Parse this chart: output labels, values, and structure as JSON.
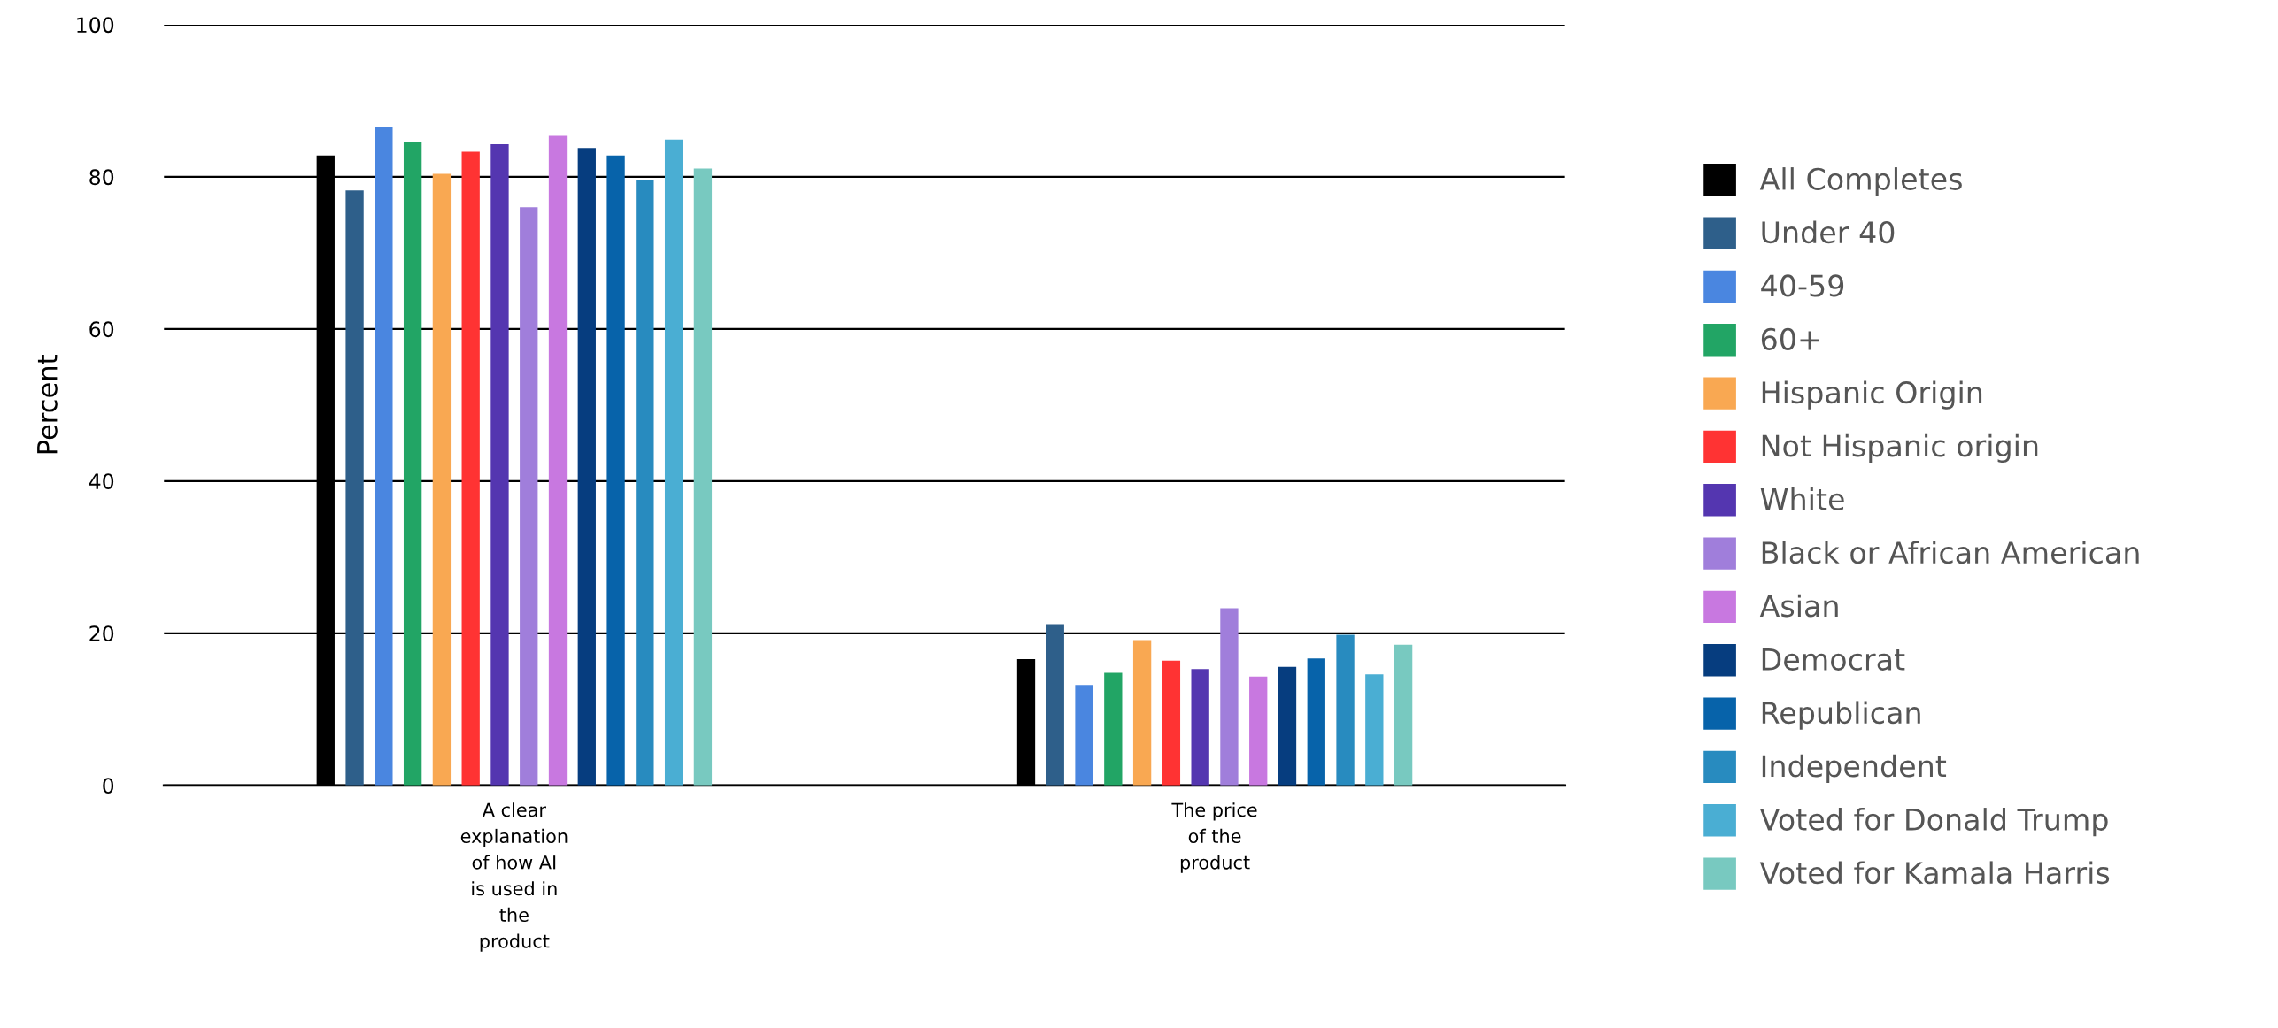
{
  "chart_data": {
    "type": "bar",
    "ylabel": "Percent",
    "categories": [
      "A clear\nexplanation\nof how AI\nis used in\nthe\nproduct",
      "The price\nof the\nproduct"
    ],
    "ylim": [
      0,
      100
    ],
    "yticks": [
      0,
      20,
      40,
      60,
      80,
      100
    ],
    "grid": "y",
    "legend": "right",
    "series": [
      {
        "name": "All Completes",
        "color": "#000000",
        "values": [
          82.8,
          16.6
        ]
      },
      {
        "name": "Under 40",
        "color": "#2e5f8a",
        "values": [
          78.2,
          21.2
        ]
      },
      {
        "name": "40-59",
        "color": "#4a86e0",
        "values": [
          86.5,
          13.2
        ]
      },
      {
        "name": "60+",
        "color": "#22a565",
        "values": [
          84.6,
          14.8
        ]
      },
      {
        "name": "Hispanic Origin",
        "color": "#f9a852",
        "values": [
          80.4,
          19.1
        ]
      },
      {
        "name": "Not Hispanic origin",
        "color": "#ff3333",
        "values": [
          83.3,
          16.4
        ]
      },
      {
        "name": "White",
        "color": "#5436b0",
        "values": [
          84.3,
          15.3
        ]
      },
      {
        "name": "Black or African American",
        "color": "#a07edb",
        "values": [
          76.0,
          23.3
        ]
      },
      {
        "name": "Asian",
        "color": "#c878e0",
        "values": [
          85.4,
          14.3
        ]
      },
      {
        "name": "Democrat",
        "color": "#063d7f",
        "values": [
          83.8,
          15.6
        ]
      },
      {
        "name": "Republican",
        "color": "#0763aa",
        "values": [
          82.8,
          16.7
        ]
      },
      {
        "name": "Independent",
        "color": "#288bbf",
        "values": [
          79.6,
          19.8
        ]
      },
      {
        "name": "Voted for Donald Trump",
        "color": "#4aaed3",
        "values": [
          84.9,
          14.6
        ]
      },
      {
        "name": "Voted for Kamala Harris",
        "color": "#78c9c0",
        "values": [
          81.1,
          18.5
        ]
      }
    ]
  }
}
